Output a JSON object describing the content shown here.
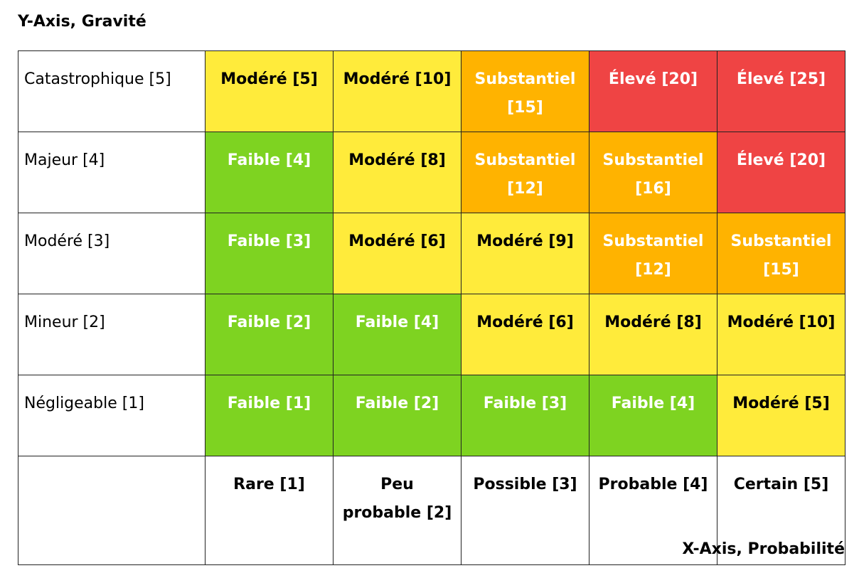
{
  "chart_data": {
    "type": "heatmap",
    "ylabel": "Y-Axis, Gravité",
    "xlabel": "X-Axis, Probabilité",
    "x_labels": [
      "Rare [1]",
      "Peu probable [2]",
      "Possible [3]",
      "Probable [4]",
      "Certain [5]"
    ],
    "rows": [
      {
        "label": "Catastrophique [5]",
        "cells": [
          {
            "text": "Modéré [5]",
            "level": "modere",
            "value": 5
          },
          {
            "text": "Modéré [10]",
            "level": "modere",
            "value": 10
          },
          {
            "text": "Substantiel [15]",
            "level": "substantiel",
            "value": 15
          },
          {
            "text": "Élevé [20]",
            "level": "eleve",
            "value": 20
          },
          {
            "text": "Élevé [25]",
            "level": "eleve",
            "value": 25
          }
        ]
      },
      {
        "label": "Majeur [4]",
        "cells": [
          {
            "text": "Faible [4]",
            "level": "faible",
            "value": 4
          },
          {
            "text": "Modéré [8]",
            "level": "modere",
            "value": 8
          },
          {
            "text": "Substantiel [12]",
            "level": "substantiel",
            "value": 12
          },
          {
            "text": "Substantiel [16]",
            "level": "substantiel",
            "value": 16
          },
          {
            "text": "Élevé [20]",
            "level": "eleve",
            "value": 20
          }
        ]
      },
      {
        "label": "Modéré [3]",
        "cells": [
          {
            "text": "Faible [3]",
            "level": "faible",
            "value": 3
          },
          {
            "text": "Modéré [6]",
            "level": "modere",
            "value": 6
          },
          {
            "text": "Modéré [9]",
            "level": "modere",
            "value": 9
          },
          {
            "text": "Substantiel [12]",
            "level": "substantiel",
            "value": 12
          },
          {
            "text": "Substantiel [15]",
            "level": "substantiel",
            "value": 15
          }
        ]
      },
      {
        "label": "Mineur [2]",
        "cells": [
          {
            "text": "Faible [2]",
            "level": "faible",
            "value": 2
          },
          {
            "text": "Faible [4]",
            "level": "faible",
            "value": 4
          },
          {
            "text": "Modéré [6]",
            "level": "modere",
            "value": 6
          },
          {
            "text": "Modéré [8]",
            "level": "modere",
            "value": 8
          },
          {
            "text": "Modéré [10]",
            "level": "modere",
            "value": 10
          }
        ]
      },
      {
        "label": "Négligeable [1]",
        "cells": [
          {
            "text": "Faible [1]",
            "level": "faible",
            "value": 1
          },
          {
            "text": "Faible [2]",
            "level": "faible",
            "value": 2
          },
          {
            "text": "Faible [3]",
            "level": "faible",
            "value": 3
          },
          {
            "text": "Faible [4]",
            "level": "faible",
            "value": 4
          },
          {
            "text": "Modéré [5]",
            "level": "modere",
            "value": 5
          }
        ]
      }
    ],
    "level_colors": {
      "faible": "#7ed321",
      "modere": "#ffeb3b",
      "substantiel": "#ffb300",
      "eleve": "#ef4444"
    },
    "grid": true
  }
}
